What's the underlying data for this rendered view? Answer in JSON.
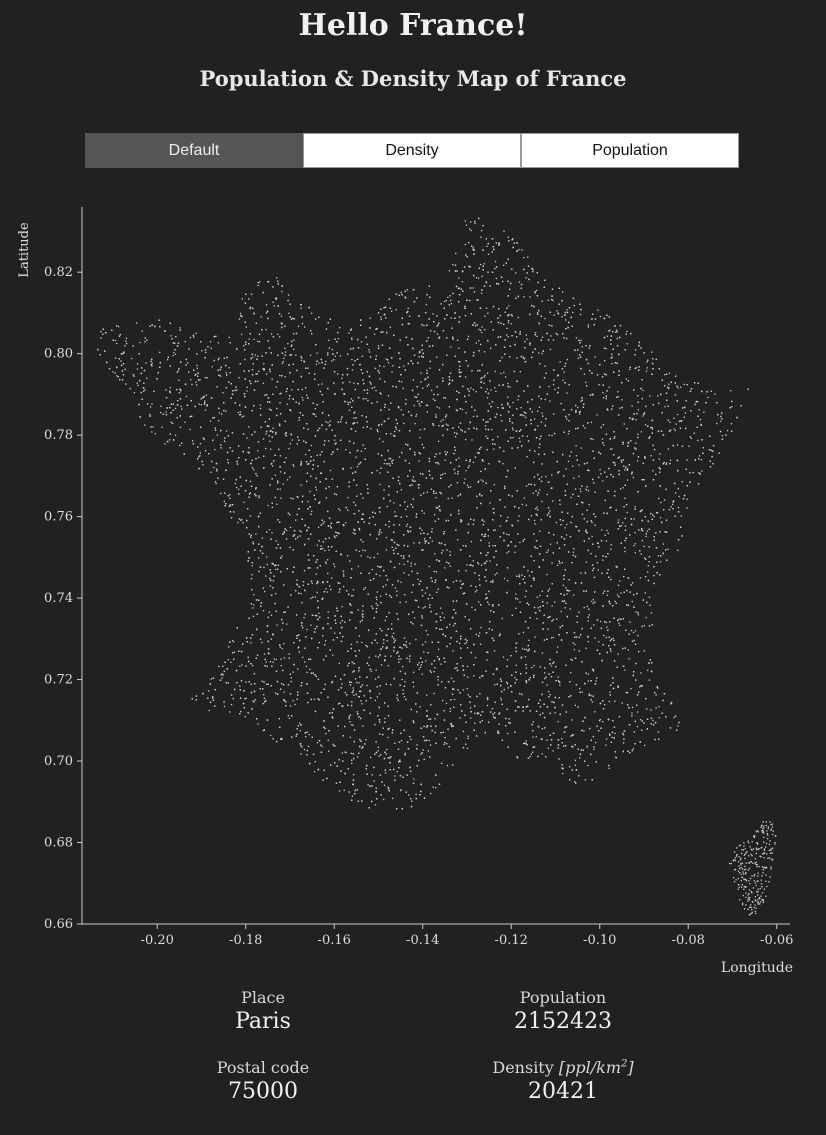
{
  "header": {
    "title": "Hello France!",
    "subtitle": "Population & Density Map of France"
  },
  "controls": {
    "buttons": [
      "Default",
      "Density",
      "Population"
    ],
    "active": "Default"
  },
  "chart_data": {
    "type": "scatter",
    "title": "Population & Density Map of France",
    "xlabel": "Longitude",
    "ylabel": "Latitude",
    "xlim": [
      -0.217,
      -0.057
    ],
    "ylim": [
      0.66,
      0.836
    ],
    "xticks": [
      -0.2,
      -0.18,
      -0.16,
      -0.14,
      -0.12,
      -0.1,
      -0.08,
      -0.06
    ],
    "yticks": [
      0.66,
      0.68,
      0.7,
      0.72,
      0.74,
      0.76,
      0.78,
      0.8,
      0.82
    ],
    "xtick_labels": [
      "-0.20",
      "-0.18",
      "-0.16",
      "-0.14",
      "-0.12",
      "-0.10",
      "-0.08",
      "-0.06"
    ],
    "ytick_labels": [
      "0.66",
      "0.68",
      "0.70",
      "0.72",
      "0.74",
      "0.76",
      "0.78",
      "0.80",
      "0.82"
    ],
    "point_color": "#cfcfcf",
    "mainland_outline": [
      [
        -0.214,
        0.806
      ],
      [
        -0.2,
        0.81
      ],
      [
        -0.19,
        0.805
      ],
      [
        -0.182,
        0.805
      ],
      [
        -0.181,
        0.814
      ],
      [
        -0.174,
        0.821
      ],
      [
        -0.172,
        0.818
      ],
      [
        -0.168,
        0.813
      ],
      [
        -0.156,
        0.807
      ],
      [
        -0.147,
        0.815
      ],
      [
        -0.136,
        0.818
      ],
      [
        -0.13,
        0.836
      ],
      [
        -0.124,
        0.833
      ],
      [
        -0.12,
        0.829
      ],
      [
        -0.113,
        0.819
      ],
      [
        -0.106,
        0.814
      ],
      [
        -0.1,
        0.811
      ],
      [
        -0.092,
        0.806
      ],
      [
        -0.084,
        0.796
      ],
      [
        -0.072,
        0.791
      ],
      [
        -0.066,
        0.792
      ],
      [
        -0.071,
        0.778
      ],
      [
        -0.08,
        0.765
      ],
      [
        -0.082,
        0.751
      ],
      [
        -0.088,
        0.742
      ],
      [
        -0.088,
        0.722
      ],
      [
        -0.08,
        0.709
      ],
      [
        -0.093,
        0.702
      ],
      [
        -0.105,
        0.693
      ],
      [
        -0.111,
        0.699
      ],
      [
        -0.118,
        0.7
      ],
      [
        -0.125,
        0.708
      ],
      [
        -0.14,
        0.69
      ],
      [
        -0.148,
        0.686
      ],
      [
        -0.159,
        0.692
      ],
      [
        -0.17,
        0.702
      ],
      [
        -0.182,
        0.712
      ],
      [
        -0.195,
        0.713
      ],
      [
        -0.187,
        0.722
      ],
      [
        -0.179,
        0.742
      ],
      [
        -0.18,
        0.753
      ],
      [
        -0.187,
        0.767
      ],
      [
        -0.196,
        0.776
      ],
      [
        -0.203,
        0.781
      ],
      [
        -0.207,
        0.792
      ],
      [
        -0.215,
        0.8
      ]
    ],
    "corsica_outline": [
      [
        -0.062,
        0.687
      ],
      [
        -0.06,
        0.683
      ],
      [
        -0.061,
        0.674
      ],
      [
        -0.063,
        0.665
      ],
      [
        -0.066,
        0.661
      ],
      [
        -0.069,
        0.667
      ],
      [
        -0.071,
        0.674
      ],
      [
        -0.07,
        0.679
      ],
      [
        -0.066,
        0.681
      ]
    ]
  },
  "info": {
    "place_label": "Place",
    "place": "Paris",
    "population_label": "Population",
    "population": "2152423",
    "postal_label": "Postal code",
    "postal": "75000",
    "density_label": "Density",
    "density_unit": "ppl/km",
    "density_exp": "2",
    "density": "20421"
  }
}
